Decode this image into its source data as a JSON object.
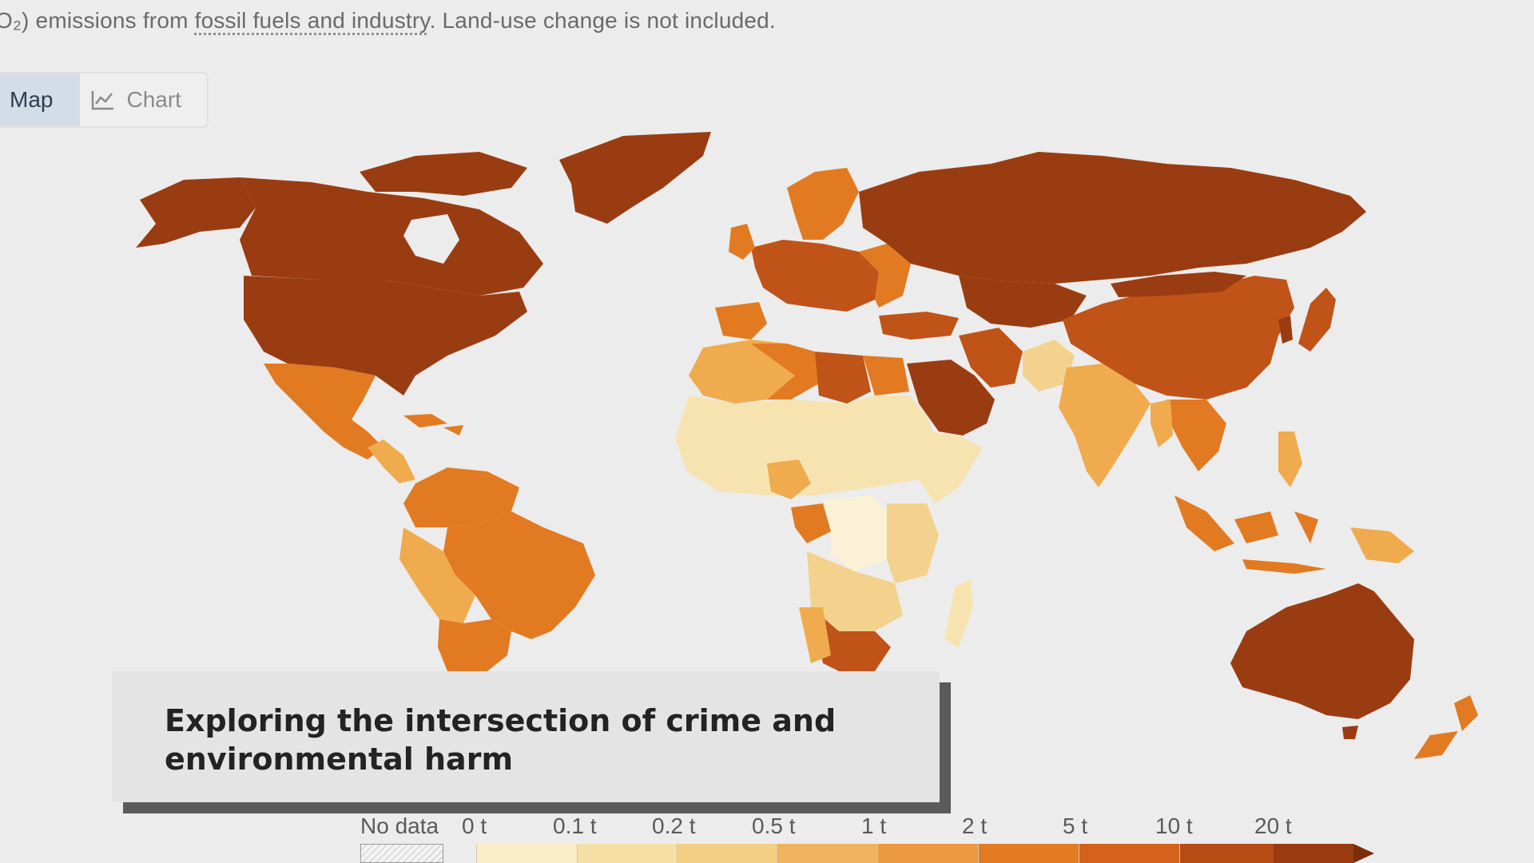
{
  "header": {
    "subtitle_prefix": "O₂) emissions from ",
    "subtitle_link": "fossil fuels and industry",
    "subtitle_suffix": ". Land-use change is not included."
  },
  "tabs": [
    {
      "label": "Map",
      "active": true
    },
    {
      "label": "Chart",
      "active": false,
      "icon": "line-chart-icon"
    }
  ],
  "caption": {
    "text": "Exploring the intersection of crime and environmental harm"
  },
  "legend": {
    "no_data_label": "No data",
    "bins": [
      {
        "label": "0 t",
        "color": "#f9ecc6"
      },
      {
        "label": "0.1 t",
        "color": "#f6dfa4"
      },
      {
        "label": "0.2 t",
        "color": "#f3cf84"
      },
      {
        "label": "0.5 t",
        "color": "#efb35d"
      },
      {
        "label": "1 t",
        "color": "#ec9a40"
      },
      {
        "label": "2 t",
        "color": "#e47a22"
      },
      {
        "label": "5 t",
        "color": "#d4621a"
      },
      {
        "label": "10 t",
        "color": "#b84a14"
      },
      {
        "label": "20 t",
        "color": "#9a3a10"
      }
    ],
    "end_color": "#7a2e0c"
  },
  "palette": {
    "darkest": "#9a3c12",
    "dark": "#c05318",
    "mid": "#e27a22",
    "light_mid": "#efab4e",
    "light": "#f3d28d",
    "lighter": "#f6e3b0",
    "lightest": "#fbf1d6"
  }
}
